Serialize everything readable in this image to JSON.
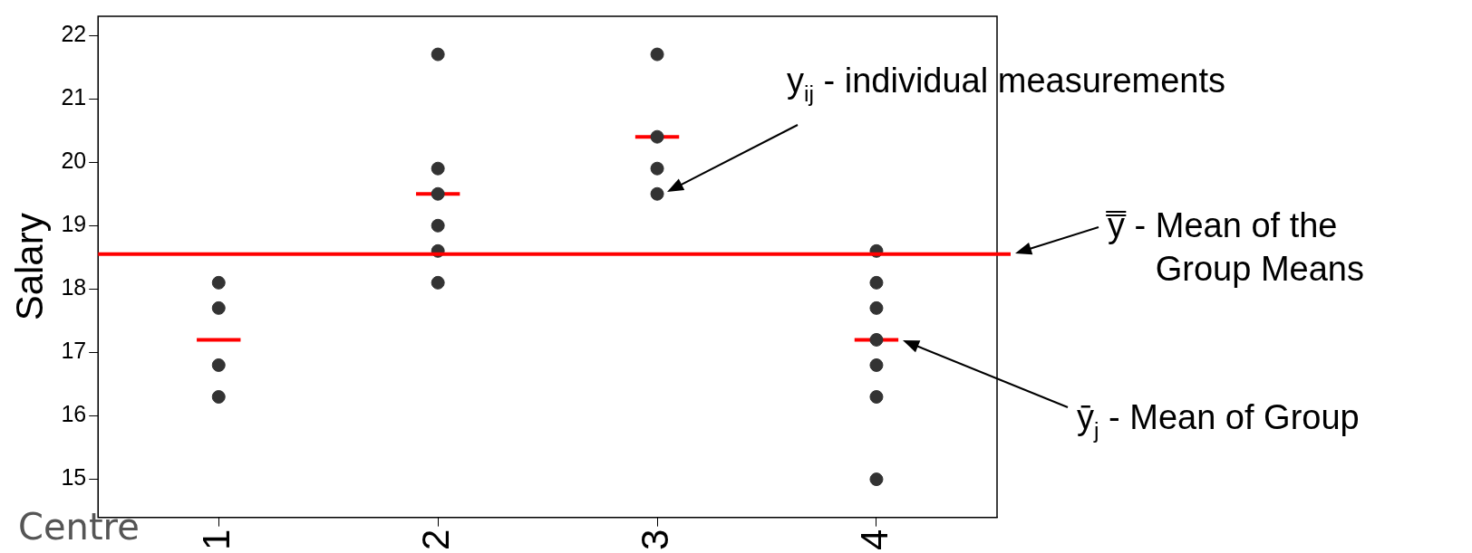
{
  "chart_data": {
    "type": "scatter",
    "xlabel": "Centre",
    "ylabel": "Salary",
    "series": [
      {
        "type": "scatter",
        "color": "#333333",
        "marker": "circle",
        "x": [
          1,
          1,
          1,
          1,
          2,
          2,
          2,
          2,
          2,
          2,
          3,
          3,
          3,
          3,
          4,
          4,
          4,
          4,
          4,
          4,
          4
        ],
        "values": [
          18.1,
          17.7,
          16.8,
          16.3,
          21.7,
          19.9,
          19.5,
          19.0,
          18.6,
          18.1,
          21.7,
          20.4,
          19.9,
          19.5,
          18.6,
          18.1,
          17.7,
          17.2,
          16.8,
          16.3,
          15.0
        ]
      },
      {
        "type": "line",
        "color": "#ff0000",
        "marker": "none",
        "x": [
          0.9,
          1.1
        ],
        "values": [
          17.2,
          17.2
        ]
      },
      {
        "type": "line",
        "color": "#ff0000",
        "marker": "none",
        "x": [
          1.9,
          2.1
        ],
        "values": [
          19.5,
          19.5
        ]
      },
      {
        "type": "line",
        "color": "#ff0000",
        "marker": "none",
        "x": [
          2.9,
          3.1
        ],
        "values": [
          20.4,
          20.4
        ]
      },
      {
        "type": "line",
        "color": "#ff0000",
        "marker": "none",
        "x": [
          3.9,
          4.1
        ],
        "values": [
          17.2,
          17.2
        ]
      }
    ],
    "xlim": [
      0.45,
      4.55
    ],
    "xticks": [
      1,
      2,
      3,
      4
    ],
    "ylim": [
      14.4,
      22.3
    ],
    "yticks": [
      15,
      16,
      17,
      18,
      19,
      20,
      21,
      22
    ],
    "ref_lines": [
      {
        "axis": "y",
        "value": 18.55,
        "color": "#ff0000"
      }
    ],
    "annotations": [
      "y$_{ij}$ - individual measurements",
      "y̿ - Mean of the Group Means",
      "ȳ$_{j}$ - Mean of Group"
    ],
    "grid": false,
    "legend": false
  }
}
